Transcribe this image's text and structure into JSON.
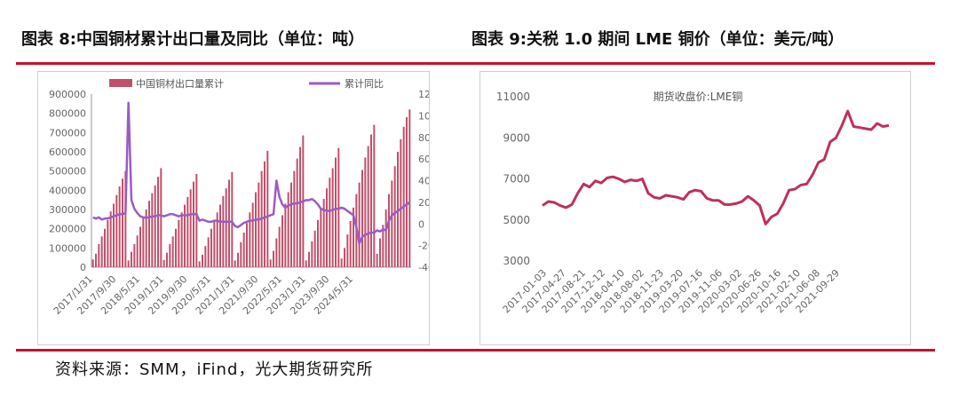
{
  "titles": {
    "left": "图表 8:中国铜材累计出口量及同比（单位：吨）",
    "right": "图表 9:关税 1.0 期间 LME 铜价（单位：美元/吨）"
  },
  "source": "资料来源：SMM，iFind，光大期货研究所",
  "colors": {
    "accent_red": "#c8102e",
    "bar": "#c0506a",
    "line_purple": "#9b5bc4",
    "price_line": "#c0305a"
  },
  "chart_data": [
    {
      "type": "bar+line",
      "title": "",
      "legend": [
        "中国铜材出口量累计",
        "累计同比"
      ],
      "legend_position": "top",
      "x_tick_labels": [
        "2017/1/31",
        "2017/9/30",
        "2018/5/31",
        "2019/1/31",
        "2019/9/30",
        "2020/5/31",
        "2021/1/31",
        "2021/9/30",
        "2022/5/31",
        "2023/1/31",
        "2023/9/30",
        "2024/5/31"
      ],
      "y_left_ticks": [
        "0",
        "100000",
        "200000",
        "300000",
        "400000",
        "500000",
        "600000",
        "700000",
        "800000",
        "900000"
      ],
      "y_left_range": [
        0,
        900000
      ],
      "y_right_ticks": [
        "-40",
        "-20",
        "0",
        "20",
        "40",
        "60",
        "80",
        "100",
        "120"
      ],
      "y_right_range": [
        -40,
        120
      ],
      "x_start": "2017-01",
      "series": [
        {
          "name": "中国铜材出口量累计",
          "axis": "left",
          "kind": "bar",
          "values": [
            40000,
            70000,
            120000,
            160000,
            200000,
            245000,
            290000,
            330000,
            375000,
            420000,
            460000,
            500000,
            35000,
            80000,
            120000,
            165000,
            210000,
            255000,
            300000,
            345000,
            385000,
            425000,
            470000,
            515000,
            38000,
            75000,
            120000,
            160000,
            200000,
            245000,
            285000,
            325000,
            365000,
            405000,
            445000,
            485000,
            30000,
            65000,
            110000,
            155000,
            200000,
            240000,
            285000,
            325000,
            370000,
            410000,
            455000,
            495000,
            35000,
            75000,
            130000,
            180000,
            230000,
            285000,
            335000,
            390000,
            440000,
            500000,
            550000,
            605000,
            40000,
            85000,
            150000,
            210000,
            270000,
            330000,
            390000,
            440000,
            500000,
            565000,
            625000,
            685000,
            35000,
            80000,
            135000,
            190000,
            245000,
            300000,
            355000,
            410000,
            465000,
            515000,
            570000,
            620000,
            45000,
            100000,
            170000,
            240000,
            310000,
            380000,
            440000,
            505000,
            570000,
            630000,
            690000,
            740000,
            70000,
            150000,
            220000,
            300000,
            380000,
            450000,
            525000,
            600000,
            665000,
            730000,
            780000,
            820000
          ]
        },
        {
          "name": "累计同比",
          "axis": "right",
          "kind": "line",
          "values": [
            6,
            5,
            6,
            4,
            5,
            5,
            6,
            7,
            8,
            9,
            9,
            10,
            112,
            22,
            14,
            10,
            7,
            6,
            6,
            6,
            7,
            7,
            8,
            8,
            7,
            8,
            9,
            9,
            8,
            7,
            8,
            8,
            8,
            9,
            9,
            9,
            3,
            4,
            3,
            2,
            2,
            3,
            3,
            2,
            2,
            2,
            2,
            2,
            -2,
            -3,
            -1,
            1,
            2,
            3,
            3,
            4,
            4,
            5,
            6,
            7,
            8,
            9,
            40,
            25,
            18,
            15,
            17,
            18,
            19,
            19,
            20,
            21,
            22,
            22,
            23,
            21,
            18,
            14,
            13,
            12,
            12,
            13,
            14,
            14,
            15,
            14,
            12,
            10,
            8,
            -3,
            -18,
            -12,
            -10,
            -9,
            -8,
            -8,
            -6,
            -7,
            -5,
            -6,
            3,
            8,
            10,
            12,
            14,
            16,
            18,
            20
          ]
        }
      ]
    },
    {
      "type": "line",
      "title": "期货收盘价:LME铜",
      "x_tick_labels": [
        "2017-01-03",
        "2017-04-27",
        "2017-08-21",
        "2017-12-12",
        "2018-04-10",
        "2018-08-02",
        "2018-11-23",
        "2019-03-20",
        "2019-07-16",
        "2019-11-06",
        "2020-03-02",
        "2020-06-26",
        "2020-10-16",
        "2021-02-10",
        "2021-06-08",
        "2021-09-29"
      ],
      "y_ticks": [
        "3000",
        "5000",
        "7000",
        "9000",
        "11000"
      ],
      "y_range": [
        3000,
        11000
      ],
      "series": [
        {
          "name": "期货收盘价:LME铜",
          "dates": [
            "2017-01",
            "2017-02",
            "2017-03",
            "2017-04",
            "2017-05",
            "2017-06",
            "2017-07",
            "2017-08",
            "2017-09",
            "2017-10",
            "2017-11",
            "2017-12",
            "2018-01",
            "2018-02",
            "2018-03",
            "2018-04",
            "2018-05",
            "2018-06",
            "2018-07",
            "2018-08",
            "2018-09",
            "2018-10",
            "2018-11",
            "2018-12",
            "2019-01",
            "2019-02",
            "2019-03",
            "2019-04",
            "2019-05",
            "2019-06",
            "2019-07",
            "2019-08",
            "2019-09",
            "2019-10",
            "2019-11",
            "2019-12",
            "2020-01",
            "2020-02",
            "2020-03",
            "2020-04",
            "2020-05",
            "2020-06",
            "2020-07",
            "2020-08",
            "2020-09",
            "2020-10",
            "2020-11",
            "2020-12",
            "2021-01",
            "2021-02",
            "2021-03",
            "2021-04",
            "2021-05",
            "2021-06",
            "2021-07",
            "2021-08",
            "2021-09",
            "2021-10",
            "2021-11",
            "2021-12"
          ],
          "values": [
            5700,
            5900,
            5850,
            5700,
            5600,
            5750,
            6300,
            6750,
            6600,
            6900,
            6800,
            7050,
            7100,
            7000,
            6850,
            6950,
            6900,
            7000,
            6300,
            6100,
            6050,
            6200,
            6150,
            6100,
            6000,
            6350,
            6450,
            6400,
            6050,
            5950,
            5950,
            5750,
            5750,
            5800,
            5900,
            6150,
            5950,
            5700,
            4800,
            5150,
            5300,
            5800,
            6450,
            6500,
            6700,
            6750,
            7200,
            7800,
            7950,
            8800,
            9000,
            9600,
            10300,
            9550,
            9500,
            9450,
            9400,
            9700,
            9550,
            9600
          ]
        }
      ]
    }
  ]
}
